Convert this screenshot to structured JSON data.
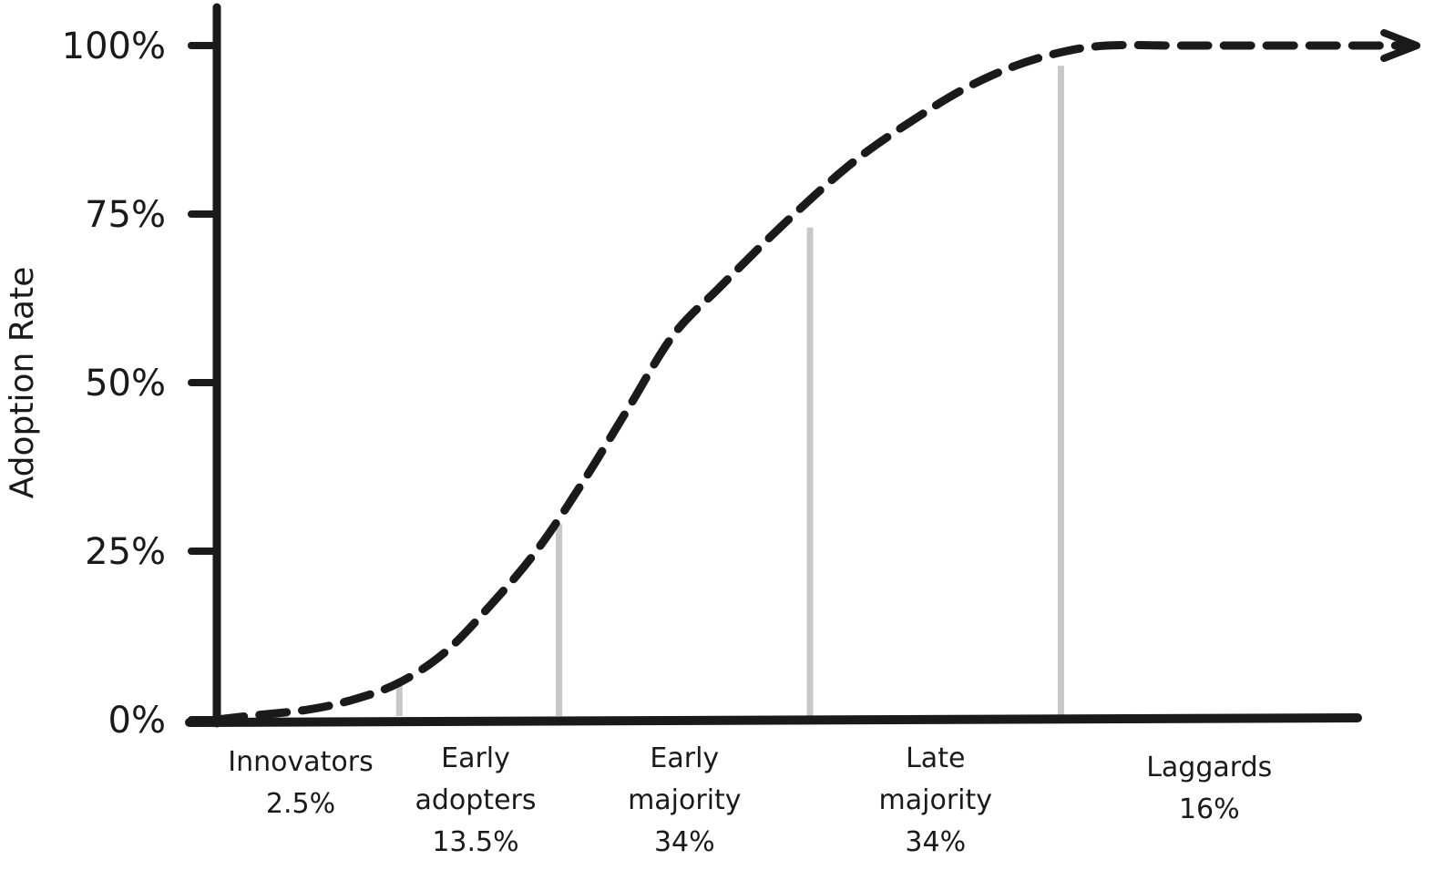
{
  "chart_data": {
    "type": "line",
    "title": "",
    "xlabel": "",
    "ylabel": "Adoption Rate",
    "ylim": [
      0,
      100
    ],
    "y_ticks": [
      "0%",
      "25%",
      "50%",
      "75%",
      "100%"
    ],
    "y_tick_values": [
      0,
      25,
      50,
      75,
      100
    ],
    "x_range": [
      0,
      100
    ],
    "series": [
      {
        "line_style": "dashed",
        "end_marker": "arrow",
        "x": [
          0,
          2.5,
          8,
          12,
          16,
          20,
          24,
          28,
          32,
          36,
          40,
          44,
          50,
          56,
          62,
          66,
          70,
          74,
          78,
          84,
          90,
          100
        ],
        "y": [
          0,
          0.5,
          1.5,
          3,
          5.5,
          10,
          17,
          25,
          35,
          46,
          57,
          64,
          74,
          83,
          90,
          94,
          97,
          99,
          100,
          100,
          100,
          100
        ]
      }
    ],
    "segments": [
      {
        "name": "Innovators",
        "share": "2.5%"
      },
      {
        "name": "Early adopters",
        "share": "13.5%"
      },
      {
        "name": "Early majority",
        "share": "34%"
      },
      {
        "name": "Late majority",
        "share": "34%"
      },
      {
        "name": "Laggards",
        "share": "16%"
      }
    ],
    "boundaries": [
      {
        "x": 16,
        "y": 6
      },
      {
        "x": 30,
        "y": 29
      },
      {
        "x": 52,
        "y": 73
      },
      {
        "x": 74,
        "y": 97
      }
    ],
    "grid": false,
    "legend": "none",
    "colors": {
      "ink": "#1a1a1a",
      "boundary": "#c8c8c8"
    }
  }
}
